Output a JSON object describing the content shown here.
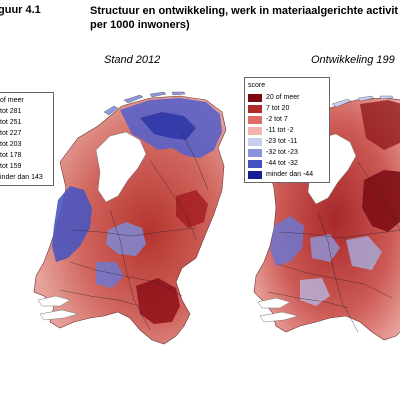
{
  "figure": {
    "label": "guur 4.1",
    "title_line1": "Structuur en ontwikkeling, werk in materiaalgerichte activit",
    "title_line2": "per 1000 inwoners)"
  },
  "maps": [
    {
      "title": "Stand 2012",
      "legend": {
        "header": "",
        "classes": [
          {
            "label": "of meer",
            "color": "#8b0a14"
          },
          {
            "label": "tot 281",
            "color": "#c0392b"
          },
          {
            "label": "tot 251",
            "color": "#e0807a"
          },
          {
            "label": "tot 227",
            "color": "#f4c4c0"
          },
          {
            "label": "tot 203",
            "color": "#c4c8ee"
          },
          {
            "label": "tot 178",
            "color": "#8f97dc"
          },
          {
            "label": "tot 159",
            "color": "#4c57c2"
          },
          {
            "label": "inder dan 143",
            "color": "#1a2596"
          }
        ]
      }
    },
    {
      "title": "Ontwikkeling 199",
      "legend": {
        "header": "score",
        "classes": [
          {
            "label": "20 of meer",
            "color": "#7a0a12"
          },
          {
            "label": "7 tot 20",
            "color": "#b02a2a"
          },
          {
            "label": "-2 tot 7",
            "color": "#dc6e66"
          },
          {
            "label": "-11 tot -2",
            "color": "#f3b4ae"
          },
          {
            "label": "-23 tot -11",
            "color": "#c9cdf0"
          },
          {
            "label": "-32 tot -23",
            "color": "#8b93dc"
          },
          {
            "label": "-44 tot -32",
            "color": "#4550c0"
          },
          {
            "label": "minder dan -44",
            "color": "#151f8f"
          }
        ]
      }
    }
  ]
}
